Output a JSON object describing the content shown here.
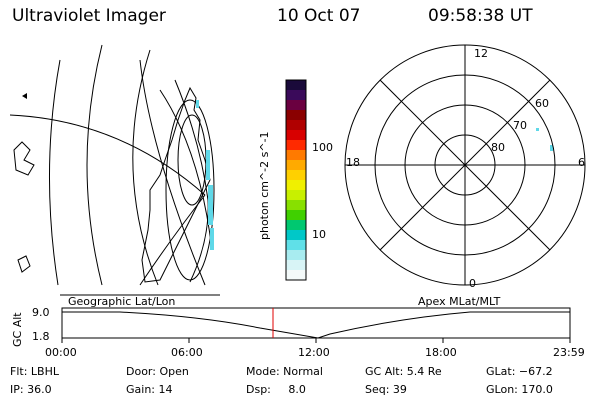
{
  "header": {
    "instrument": "Ultraviolet Imager",
    "date": "10 Oct 07",
    "time": "09:58:38 UT"
  },
  "colorbar": {
    "unit": "photon cm^-2 s^-1",
    "ticks": [
      "100",
      "10"
    ],
    "colors": [
      "#1a0a3a",
      "#3a0a5a",
      "#6a0040",
      "#8a0000",
      "#b00000",
      "#d80000",
      "#ff2a00",
      "#ff7a00",
      "#ffaa00",
      "#ffd000",
      "#f0f000",
      "#c8f000",
      "#88e000",
      "#40d000",
      "#00c870",
      "#00c8c8",
      "#60e0e8",
      "#a8ecf0",
      "#d8f4f6",
      "#f4fafa"
    ]
  },
  "left_panel": {
    "label": "Geographic Lat/Lon"
  },
  "polar_panel": {
    "label": "Apex MLat/MLT",
    "mlt_labels": {
      "top": "12",
      "left": "18",
      "right": "6",
      "bottom": "0"
    },
    "lat_labels": [
      "60",
      "70",
      "80"
    ]
  },
  "timeline": {
    "axis_label": "GC Alt",
    "y_ticks": [
      "9.0",
      "1.8"
    ],
    "x_ticks": [
      "00:00",
      "06:00",
      "12:00",
      "18:00",
      "23:59"
    ],
    "marker_time": "09:58:38"
  },
  "footer": {
    "flt": "Flt: LBHL",
    "ip": "IP: 36.0",
    "door": "Door: Open",
    "gain": "Gain: 14",
    "mode": "Mode: Normal",
    "dsp": "Dsp:     8.0",
    "gc_alt": "GC Alt: 5.4 Re",
    "seq": "Seq: 39",
    "glat": "GLat: −67.2",
    "glon": "GLon: 170.0"
  },
  "colors": {
    "marker": "#e00000",
    "aurora": "#5fd8e8"
  }
}
